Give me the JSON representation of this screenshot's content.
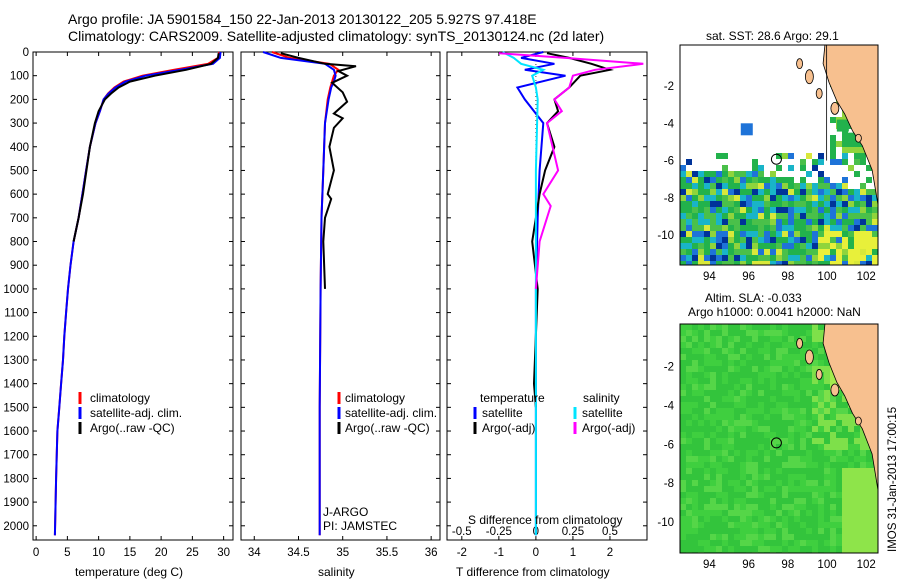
{
  "header": {
    "line1": "Argo profile: JA 5901584_150 22-Jan-2013 20130122_205 5.927S 97.418E",
    "line2": "Climatology: CARS2009. Satellite-adjusted climatology: synTS_20130124.nc (2d later)"
  },
  "colors": {
    "climatology": "#ff0000",
    "satellite": "#0000ff",
    "argo": "#000000",
    "sat_salinity": "#00e5ff",
    "argo_salinity_diff": "#ff00ff",
    "land": "#f7c08f"
  },
  "chart_data": [
    {
      "type": "line",
      "panel": "temperature",
      "xlabel": "temperature (deg C)",
      "xlim": [
        -0.5,
        31.5
      ],
      "xticks": [
        "0",
        "5",
        "10",
        "15",
        "20",
        "25",
        "30"
      ],
      "ylim": [
        2060,
        0
      ],
      "yticks": [
        "0",
        "100",
        "200",
        "300",
        "400",
        "500",
        "600",
        "700",
        "800",
        "900",
        "1000",
        "1100",
        "1200",
        "1300",
        "1400",
        "1500",
        "1600",
        "1700",
        "1800",
        "1900",
        "2000"
      ],
      "legend": [
        "climatology",
        "satellite-adj. clim.",
        "Argo(..raw -QC)"
      ],
      "series": [
        {
          "name": "climatology",
          "color": "#ff0000",
          "x": [
            29.3,
            29.1,
            27.5,
            22,
            17,
            14,
            12.5,
            11.5,
            10.8,
            10.2,
            9.5,
            8.6,
            8,
            7.4,
            6.8,
            6,
            5.5,
            5.1,
            4.8,
            4.5,
            4.3,
            4,
            3.7,
            3.4,
            3.2,
            3
          ],
          "y": [
            0,
            25,
            50,
            75,
            100,
            125,
            150,
            175,
            200,
            250,
            300,
            400,
            500,
            600,
            700,
            800,
            900,
            1000,
            1100,
            1200,
            1300,
            1400,
            1500,
            1600,
            1800,
            2040
          ]
        },
        {
          "name": "satellite-adj. clim.",
          "color": "#0000ff",
          "x": [
            29.5,
            29.4,
            28.3,
            23,
            17.5,
            14.3,
            12.7,
            11.6,
            10.8,
            10.2,
            9.5,
            8.6,
            8,
            7.4,
            6.8,
            6,
            5.5,
            5.1,
            4.8,
            4.5,
            4.3,
            4,
            3.7,
            3.4,
            3.2,
            3
          ],
          "y": [
            0,
            25,
            50,
            75,
            100,
            125,
            150,
            175,
            200,
            250,
            300,
            400,
            500,
            600,
            700,
            800,
            900,
            1000,
            1100,
            1200,
            1300,
            1400,
            1500,
            1600,
            1800,
            2040
          ]
        },
        {
          "name": "Argo(..raw -QC)",
          "color": "#000000",
          "x": [
            29.2,
            29.1,
            28,
            24,
            19,
            15,
            13.2,
            12,
            11,
            10,
            9.4,
            8.6,
            7.5,
            6.8,
            6
          ],
          "y": [
            5,
            25,
            50,
            75,
            100,
            125,
            150,
            175,
            200,
            250,
            300,
            400,
            600,
            700,
            800
          ]
        }
      ]
    },
    {
      "type": "line",
      "panel": "salinity",
      "xlabel": "salinity",
      "xlim": [
        33.85,
        36.1
      ],
      "xticks": [
        "34",
        "34.5",
        "35",
        "35.5",
        "36"
      ],
      "ylim": [
        2060,
        0
      ],
      "legend": [
        "climatology",
        "satellite-adj. clim.",
        "Argo(..raw -QC)"
      ],
      "annotation": [
        "J-ARGO",
        "PI: JAMSTEC"
      ],
      "series": [
        {
          "name": "climatology",
          "color": "#ff0000",
          "x": [
            34.2,
            34.4,
            34.85,
            34.95,
            34.9,
            34.88,
            34.86,
            34.83,
            34.8,
            34.78,
            34.76,
            34.75,
            34.74,
            34.74
          ],
          "y": [
            0,
            25,
            50,
            75,
            100,
            125,
            150,
            200,
            300,
            500,
            700,
            1000,
            1500,
            2040
          ]
        },
        {
          "name": "satellite-adj. clim.",
          "color": "#0000ff",
          "x": [
            34.1,
            34.3,
            34.8,
            34.9,
            34.92,
            34.9,
            34.87,
            34.84,
            34.8,
            34.78,
            34.76,
            34.75,
            34.74,
            34.74
          ],
          "y": [
            0,
            25,
            50,
            75,
            100,
            125,
            150,
            200,
            300,
            500,
            700,
            1000,
            1500,
            2040
          ]
        },
        {
          "name": "Argo(..raw -QC)",
          "color": "#000000",
          "x": [
            34.3,
            34.5,
            34.8,
            35.15,
            34.95,
            35.05,
            34.88,
            35.0,
            35.05,
            34.9,
            35.0,
            34.9,
            34.85,
            34.9,
            34.83,
            34.87,
            34.8,
            34.78,
            34.8
          ],
          "y": [
            5,
            25,
            50,
            60,
            80,
            100,
            130,
            170,
            210,
            260,
            280,
            320,
            400,
            500,
            600,
            620,
            700,
            800,
            1000
          ]
        }
      ]
    },
    {
      "type": "line",
      "panel": "difference",
      "xlabel": "T difference from climatology",
      "xlabel2": "S difference from climatology",
      "xlim": [
        -2.4,
        3
      ],
      "xticks": [
        "-2",
        "-1",
        "0",
        "1",
        "2"
      ],
      "xticks2": [
        "-0.5",
        "-0.25",
        "0",
        "0.25",
        "0.5"
      ],
      "ylim": [
        2060,
        0
      ],
      "legend_temperature": [
        "temperature",
        "satellite",
        "Argo(-adj)"
      ],
      "legend_salinity": [
        "salinity",
        "satellite",
        "Argo(-adj)"
      ],
      "series": [
        {
          "name": "satellite",
          "color": "#0000ff",
          "x": [
            0.2,
            -0.4,
            0.5,
            -0.3,
            0.8,
            -0.5,
            -0.3,
            0.2,
            0.1,
            0.05,
            0,
            0
          ],
          "y": [
            0,
            25,
            50,
            75,
            100,
            150,
            200,
            300,
            500,
            700,
            1000,
            2040
          ]
        },
        {
          "name": "Argo(-adj)",
          "color": "#000000",
          "x": [
            0.3,
            0.9,
            1.5,
            2.0,
            1.2,
            0.9,
            0.5,
            0.6,
            0.3,
            0.5,
            0.25,
            0.1,
            0,
            -0.1,
            0.05,
            -0.05,
            0
          ],
          "y": [
            5,
            25,
            50,
            75,
            100,
            150,
            200,
            250,
            300,
            400,
            500,
            600,
            700,
            800,
            1000,
            1400,
            1500
          ]
        },
        {
          "name": "satellite (salinity)",
          "color": "#00e5ff",
          "x": [
            -0.9,
            -0.6,
            -0.4,
            0.2,
            -0.1,
            0,
            0.05,
            0,
            0,
            0
          ],
          "y": [
            0,
            25,
            50,
            75,
            100,
            150,
            200,
            500,
            1000,
            2040
          ]
        },
        {
          "name": "Argo(-adj) (salinity)",
          "color": "#ff00ff",
          "x": [
            -1.0,
            0.8,
            2.9,
            1.6,
            1.0,
            0.9,
            0.5,
            0.7,
            0.3,
            0.6,
            0.2,
            0.4,
            0.1,
            0
          ],
          "y": [
            5,
            25,
            50,
            75,
            100,
            150,
            200,
            250,
            300,
            500,
            600,
            650,
            800,
            1000
          ]
        }
      ]
    },
    {
      "type": "heatmap",
      "panel": "map-sst",
      "title": "sat. SST: 28.6  Argo: 29.1",
      "xlim": [
        92.5,
        102.6
      ],
      "xticks": [
        "94",
        "96",
        "98",
        "100",
        "102"
      ],
      "ylim": [
        -11.6,
        0.2
      ],
      "yticks": [
        "-2",
        "-4",
        "-6",
        "-8",
        "-10"
      ],
      "argo_position": [
        97.418,
        -5.927
      ]
    },
    {
      "type": "heatmap",
      "panel": "map-sla",
      "title1": "Altim. SLA: -0.033",
      "title2": "Argo h1000: 0.0041 h2000: NaN",
      "xlim": [
        92.5,
        102.6
      ],
      "xticks": [
        "94",
        "96",
        "98",
        "100",
        "102"
      ],
      "ylim": [
        -11.6,
        0.2
      ],
      "yticks": [
        "-2",
        "-4",
        "-6",
        "-8",
        "-10"
      ],
      "argo_position": [
        97.418,
        -5.927
      ]
    }
  ],
  "footer_vertical": "IMOS 31-Jan-2013 17:00:15"
}
